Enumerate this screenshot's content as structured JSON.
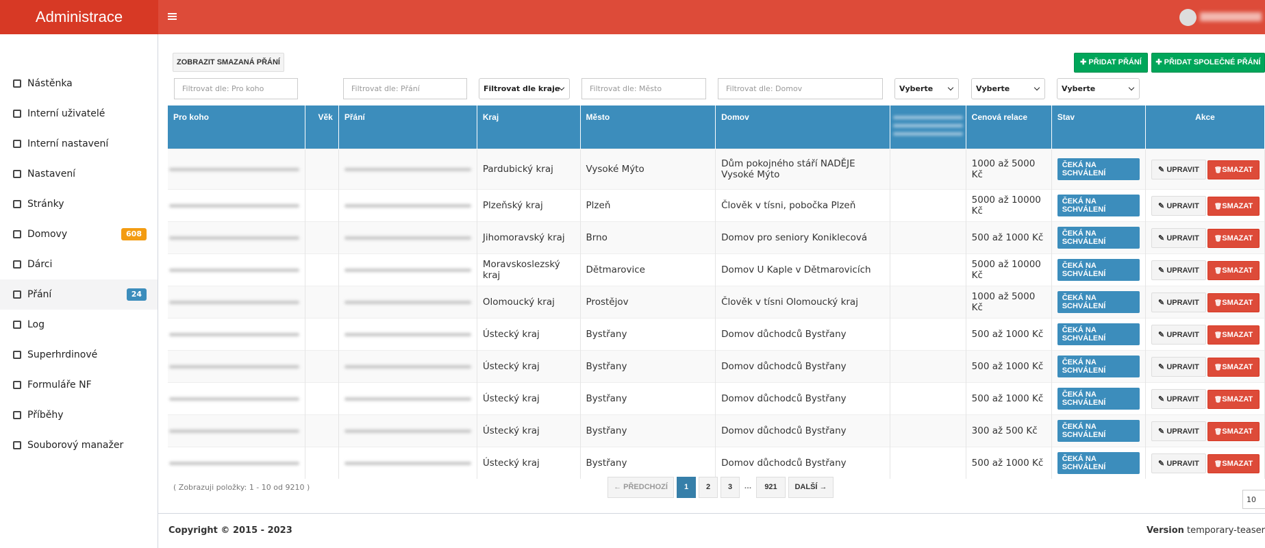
{
  "header": {
    "title": "Administrace"
  },
  "sidebar": {
    "items": [
      {
        "label": "Nástěnka"
      },
      {
        "label": "Interní uživatelé"
      },
      {
        "label": "Interní nastavení"
      },
      {
        "label": "Nastavení"
      },
      {
        "label": "Stránky"
      },
      {
        "label": "Domovy",
        "badge": "608"
      },
      {
        "label": "Dárci"
      },
      {
        "label": "Přání",
        "badge": "24"
      },
      {
        "label": "Log"
      },
      {
        "label": "Superhrdinové"
      },
      {
        "label": "Formuláře NF"
      },
      {
        "label": "Příběhy"
      },
      {
        "label": "Souborový manažer"
      }
    ]
  },
  "toolbar": {
    "show_deleted": "ZOBRAZIT SMAZANÁ PŘÁNÍ",
    "add_wish": "PŘIDAT PŘÁNÍ",
    "add_shared_wish": "PŘIDAT SPOLEČNÉ PŘÁNÍ"
  },
  "filters": {
    "pro_koho": "Filtrovat dle: Pro koho",
    "prani": "Filtrovat dle: Přání",
    "kraj": "Filtrovat dle kraje",
    "mesto": "Filtrovat dle: Město",
    "domov": "Filtrovat dle: Domov",
    "select_1": "Vyberte",
    "select_2": "Vyberte",
    "select_3": "Vyberte"
  },
  "table": {
    "columns": [
      "Pro koho",
      "Věk",
      "Přání",
      "Kraj",
      "Město",
      "Domov",
      "Cenová relace",
      "Stav",
      "Akce"
    ],
    "edit_label": "UPRAVIT",
    "delete_label": "SMAZAT",
    "rows": [
      [
        "Pardubický kraj",
        "Vysoké Mýto",
        "Dům pokojného stáří NADĚJE Vysoké Mýto",
        "1000 až 5000 Kč",
        "ČEKÁ NA SCHVÁLENÍ"
      ],
      [
        "Plzeňský kraj",
        "Plzeň",
        "Člověk v tísni, pobočka Plzeň",
        "5000 až 10000 Kč",
        "ČEKÁ NA SCHVÁLENÍ"
      ],
      [
        "Jihomoravský kraj",
        "Brno",
        "Domov pro seniory Koniklecová",
        "500 až 1000 Kč",
        "ČEKÁ NA SCHVÁLENÍ"
      ],
      [
        "Moravskoslezský kraj",
        "Dětmarovice",
        "Domov U Kaple v Dětmarovicích",
        "5000 až 10000 Kč",
        "ČEKÁ NA SCHVÁLENÍ"
      ],
      [
        "Olomoucký kraj",
        "Prostějov",
        "Člověk v tísni Olomoucký kraj",
        "1000 až 5000 Kč",
        "ČEKÁ NA SCHVÁLENÍ"
      ],
      [
        "Ústecký kraj",
        "Bystřany",
        "Domov důchodců Bystřany",
        "500 až 1000 Kč",
        "ČEKÁ NA SCHVÁLENÍ"
      ],
      [
        "Ústecký kraj",
        "Bystřany",
        "Domov důchodců Bystřany",
        "500 až 1000 Kč",
        "ČEKÁ NA SCHVÁLENÍ"
      ],
      [
        "Ústecký kraj",
        "Bystřany",
        "Domov důchodců Bystřany",
        "500 až 1000 Kč",
        "ČEKÁ NA SCHVÁLENÍ"
      ],
      [
        "Ústecký kraj",
        "Bystřany",
        "Domov důchodců Bystřany",
        "300 až 500 Kč",
        "ČEKÁ NA SCHVÁLENÍ"
      ],
      [
        "Ústecký kraj",
        "Bystřany",
        "Domov důchodců Bystřany",
        "500 až 1000 Kč",
        "ČEKÁ NA SCHVÁLENÍ"
      ]
    ]
  },
  "pagination": {
    "info": "( Zobrazuji položky: 1 - 10 od 9210 )",
    "previous": "PŘEDCHOZÍ",
    "pages": [
      "1",
      "2",
      "3",
      "…",
      "921"
    ],
    "next": "DALŠÍ",
    "page_size": "10"
  },
  "footer": {
    "copyright": "Copyright © 2015 - 2023",
    "version_label": "Version",
    "version": "temporary-teaser"
  }
}
